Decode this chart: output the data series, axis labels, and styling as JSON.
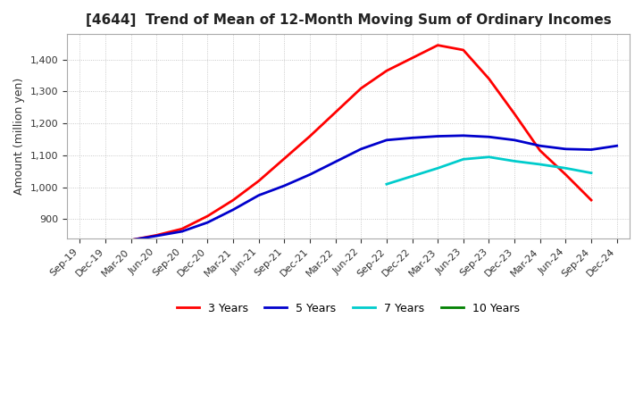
{
  "title": "[4644]  Trend of Mean of 12-Month Moving Sum of Ordinary Incomes",
  "ylabel": "Amount (million yen)",
  "ylim": [
    840,
    1480
  ],
  "yticks": [
    900,
    1000,
    1100,
    1200,
    1300,
    1400
  ],
  "background_color": "#ffffff",
  "plot_bg_color": "#ffffff",
  "grid_color": "#aaaaaa",
  "xtick_labels": [
    "Sep-19",
    "Dec-19",
    "Mar-20",
    "Jun-20",
    "Sep-20",
    "Dec-20",
    "Mar-21",
    "Jun-21",
    "Sep-21",
    "Dec-21",
    "Mar-22",
    "Jun-22",
    "Sep-22",
    "Dec-22",
    "Mar-23",
    "Jun-23",
    "Sep-23",
    "Dec-23",
    "Mar-24",
    "Jun-24",
    "Sep-24",
    "Dec-24"
  ],
  "series": [
    {
      "label": "3 Years",
      "color": "#ff0000",
      "y": [
        822,
        828,
        835,
        850,
        870,
        910,
        960,
        1020,
        1090,
        1160,
        1235,
        1310,
        1365,
        1405,
        1445,
        1430,
        1340,
        1230,
        1115,
        1040,
        960,
        null
      ]
    },
    {
      "label": "5 Years",
      "color": "#0000cc",
      "y": [
        825,
        822,
        835,
        848,
        862,
        890,
        930,
        975,
        1005,
        1040,
        1080,
        1120,
        1148,
        1155,
        1160,
        1162,
        1158,
        1148,
        1130,
        1120,
        1118,
        1130
      ]
    },
    {
      "label": "7 Years",
      "color": "#00cccc",
      "y": [
        null,
        null,
        null,
        null,
        null,
        null,
        null,
        null,
        null,
        null,
        null,
        null,
        1010,
        1035,
        1060,
        1088,
        1095,
        1082,
        1072,
        1060,
        1045,
        null
      ]
    },
    {
      "label": "10 Years",
      "color": "#008000",
      "y": [
        null,
        null,
        null,
        null,
        null,
        null,
        null,
        null,
        null,
        null,
        null,
        null,
        null,
        null,
        null,
        null,
        null,
        null,
        null,
        null,
        null,
        null
      ]
    }
  ]
}
